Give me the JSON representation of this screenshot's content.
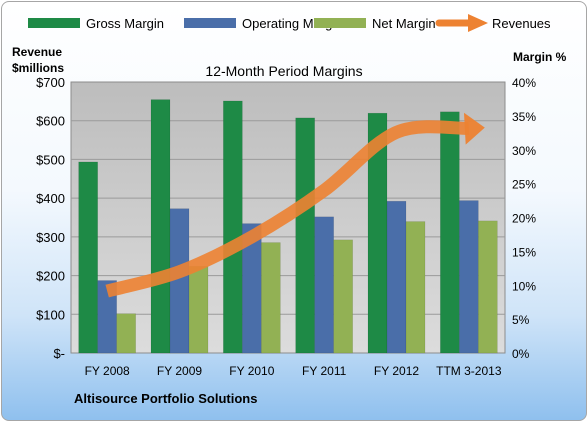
{
  "chart_data": {
    "type": "bar",
    "title": "12-Month Period Margins",
    "footer": "Altisource Portfolio Solutions",
    "y_left_label": [
      "Revenue",
      "$millions"
    ],
    "y_right_label": "Margin %",
    "categories": [
      "FY 2008",
      "FY 2009",
      "FY 2010",
      "FY 2011",
      "FY 2012",
      "TTM 3-2013"
    ],
    "series": [
      {
        "name": "Gross Margin",
        "axis": "right",
        "unit": "%",
        "color": "#1e8a46",
        "values": [
          28.2,
          37.4,
          37.2,
          34.7,
          35.4,
          35.6
        ]
      },
      {
        "name": "Operating Margin",
        "axis": "right",
        "unit": "%",
        "color": "#4a6ea9",
        "values": [
          10.7,
          21.3,
          19.1,
          20.1,
          22.4,
          22.5
        ]
      },
      {
        "name": "Net Margin",
        "axis": "right",
        "unit": "%",
        "color": "#92b154",
        "values": [
          5.8,
          12.8,
          16.3,
          16.7,
          19.4,
          19.5
        ]
      },
      {
        "name": "Revenues",
        "axis": "left",
        "unit": "$millions",
        "type": "line",
        "color": "#ed8232",
        "values": [
          160,
          210,
          300,
          420,
          570,
          580
        ]
      }
    ],
    "y_left": {
      "min": 0,
      "max": 700,
      "ticks": [
        "$-",
        "$100",
        "$200",
        "$300",
        "$400",
        "$500",
        "$600",
        "$700"
      ]
    },
    "y_right": {
      "min": 0,
      "max": 40,
      "ticks": [
        "0%",
        "5%",
        "10%",
        "15%",
        "20%",
        "25%",
        "30%",
        "35%",
        "40%"
      ]
    },
    "grid": true,
    "legend_position": "top"
  }
}
